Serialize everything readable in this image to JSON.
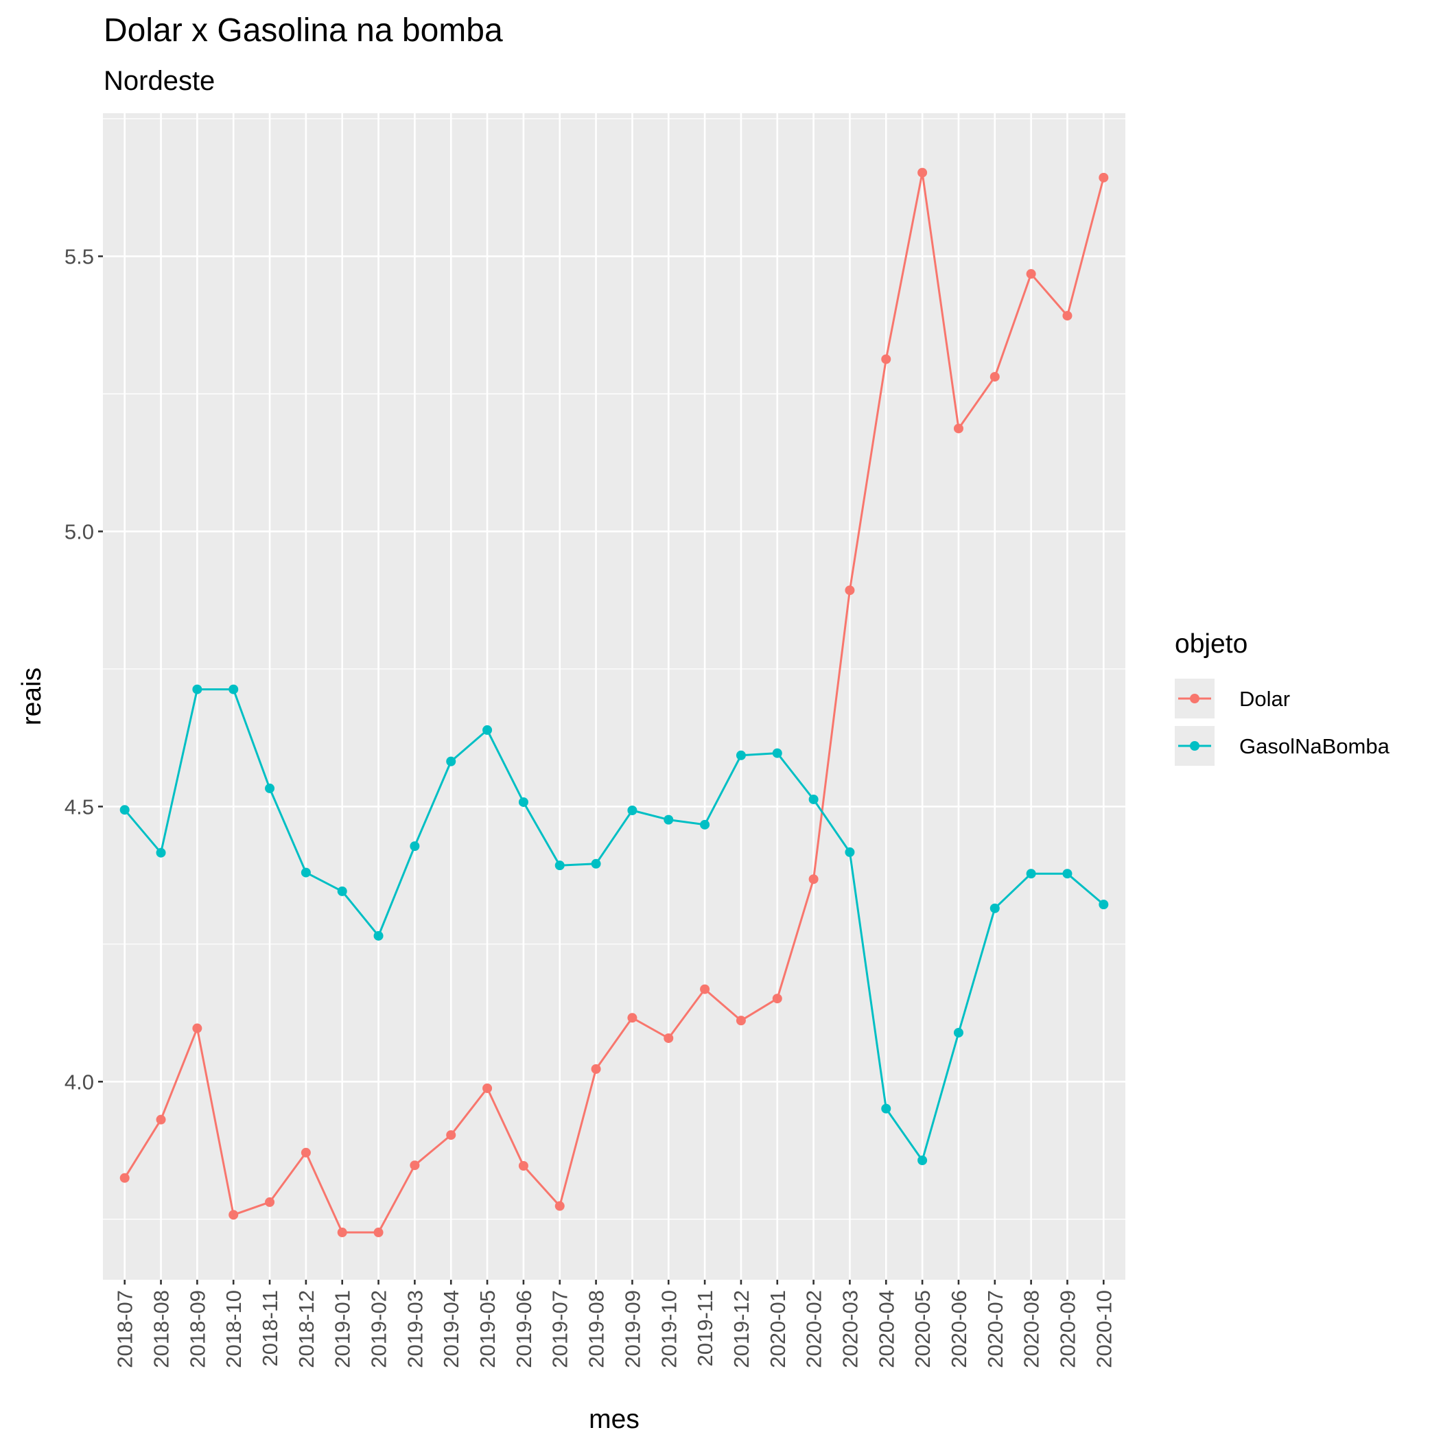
{
  "chart_data": {
    "type": "line",
    "title": "Dolar x Gasolina na bomba",
    "subtitle": "Nordeste",
    "xlabel": "mes",
    "ylabel": "reais",
    "categories": [
      "2018-07",
      "2018-08",
      "2018-09",
      "2018-10",
      "2018-11",
      "2018-12",
      "2019-01",
      "2019-02",
      "2019-03",
      "2019-04",
      "2019-05",
      "2019-06",
      "2019-07",
      "2019-08",
      "2019-09",
      "2019-10",
      "2019-11",
      "2019-12",
      "2020-01",
      "2020-02",
      "2020-03",
      "2020-04",
      "2020-05",
      "2020-06",
      "2020-07",
      "2020-08",
      "2020-09",
      "2020-10"
    ],
    "ylim": [
      3.64,
      5.76
    ],
    "y_major_ticks": [
      4.0,
      4.5,
      5.0,
      5.5
    ],
    "y_tick_labels": [
      "4.0",
      "4.5",
      "5.0",
      "5.5"
    ],
    "y_minor_ticks": [
      3.75,
      4.25,
      4.75,
      5.25,
      5.75
    ],
    "grid": true,
    "legend": {
      "title": "objeto",
      "position": "right"
    },
    "series": [
      {
        "name": "Dolar",
        "color": "#F8766D",
        "values": [
          3.825,
          3.931,
          4.097,
          3.758,
          3.781,
          3.871,
          3.726,
          3.726,
          3.848,
          3.903,
          3.988,
          3.847,
          3.774,
          4.023,
          4.116,
          4.079,
          4.168,
          4.111,
          4.151,
          4.368,
          4.893,
          5.313,
          5.652,
          5.187,
          5.281,
          5.468,
          5.392,
          5.643
        ]
      },
      {
        "name": "GasolNaBomba",
        "color": "#00BFC4",
        "values": [
          4.494,
          4.416,
          4.713,
          4.713,
          4.533,
          4.38,
          4.346,
          4.265,
          4.428,
          4.582,
          4.639,
          4.508,
          4.393,
          4.396,
          4.493,
          4.476,
          4.467,
          4.593,
          4.597,
          4.513,
          4.417,
          3.951,
          3.857,
          4.089,
          4.315,
          4.378,
          4.378,
          4.322
        ]
      }
    ]
  }
}
